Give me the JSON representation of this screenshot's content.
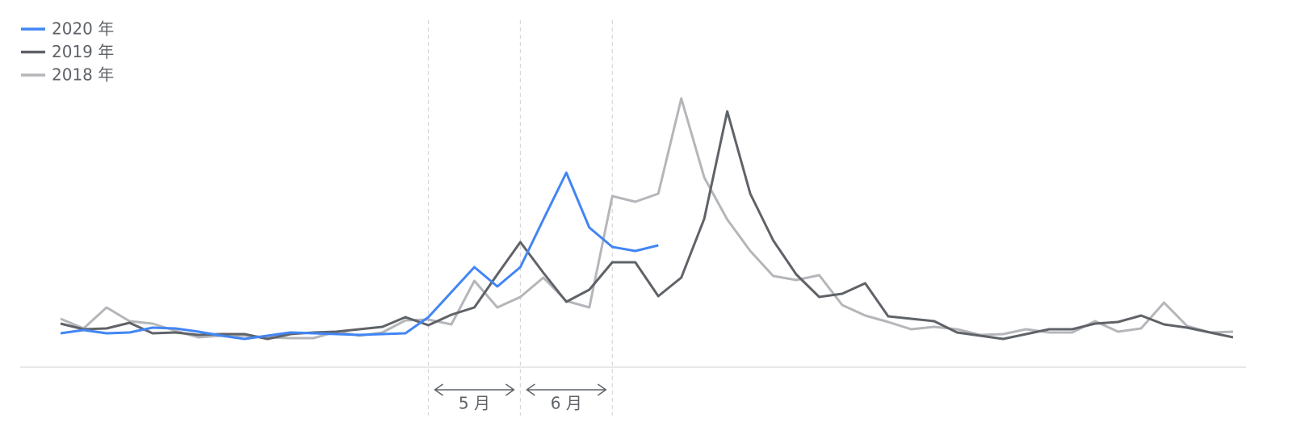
{
  "chart_data": {
    "type": "line",
    "ylim": [
      0,
      340
    ],
    "series": [
      {
        "name": "2020 年",
        "color": "#4285f4",
        "values": [
          42,
          46,
          42,
          43,
          49,
          48,
          44,
          39,
          35,
          39,
          43,
          42,
          41,
          40,
          41,
          42,
          62,
          93,
          124,
          100,
          124,
          183,
          241,
          173,
          149,
          144,
          151
        ]
      },
      {
        "name": "2019 年",
        "color": "#5f6368",
        "values": [
          54,
          47,
          48,
          55,
          42,
          43,
          40,
          41,
          41,
          35,
          41,
          43,
          44,
          47,
          50,
          62,
          52,
          65,
          74,
          115,
          155,
          117,
          81,
          96,
          130,
          130,
          88,
          111,
          184,
          317,
          215,
          157,
          115,
          87,
          91,
          104,
          63,
          60,
          57,
          43,
          39,
          35,
          41,
          47,
          47,
          54,
          56,
          64,
          53,
          49,
          43,
          37
        ]
      },
      {
        "name": "2018 年",
        "color": "#b4b6ba",
        "values": [
          60,
          48,
          74,
          57,
          54,
          45,
          37,
          39,
          39,
          37,
          36,
          36,
          44,
          39,
          43,
          58,
          59,
          53,
          107,
          74,
          87,
          111,
          82,
          74,
          212,
          205,
          215,
          333,
          235,
          183,
          144,
          113,
          108,
          114,
          77,
          64,
          56,
          47,
          50,
          47,
          40,
          41,
          47,
          43,
          43,
          57,
          44,
          48,
          80,
          51,
          43,
          44
        ]
      }
    ],
    "month_spans": [
      {
        "label": "5 月",
        "start": 16,
        "end": 20
      },
      {
        "label": "6 月",
        "start": 20,
        "end": 24
      }
    ]
  }
}
